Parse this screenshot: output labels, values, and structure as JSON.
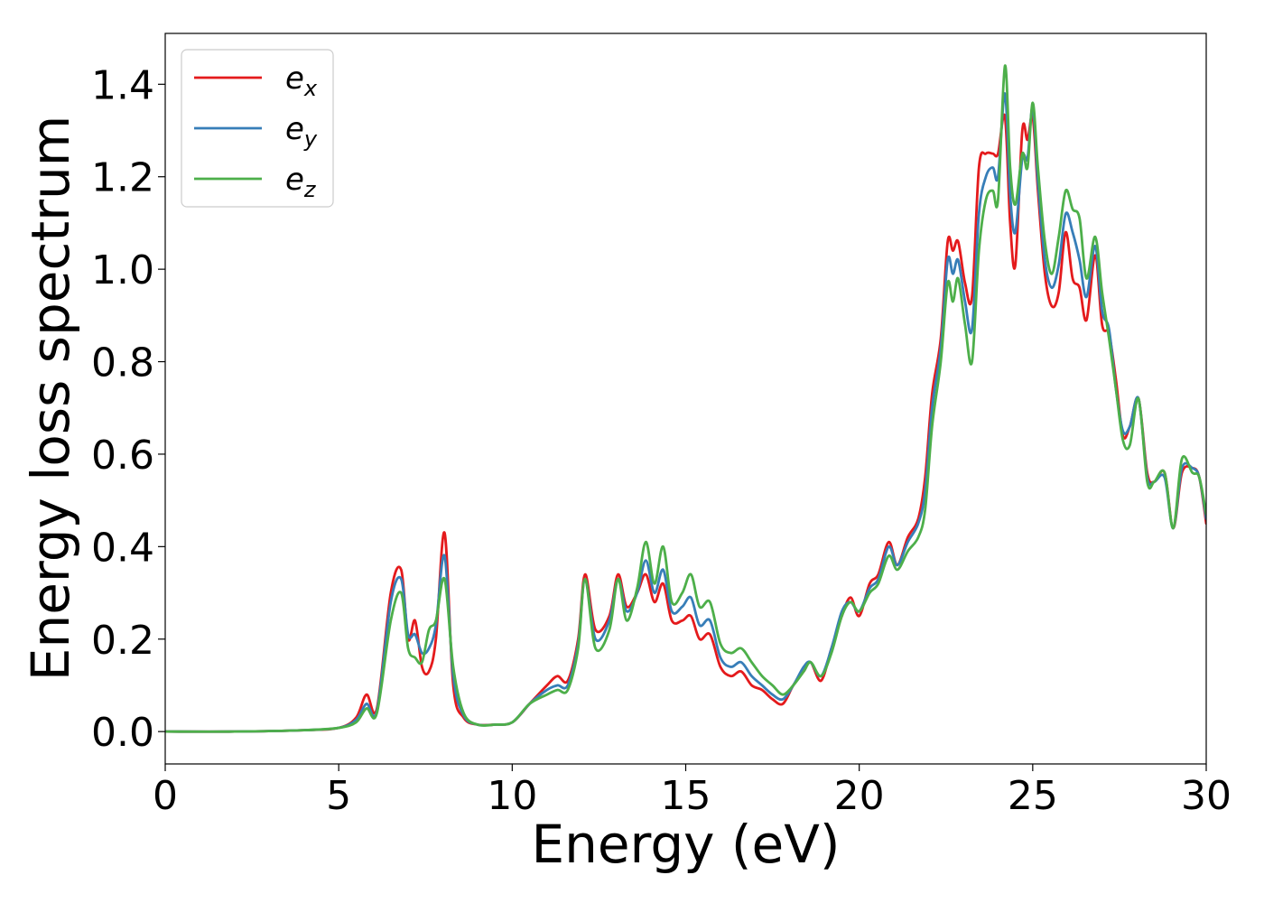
{
  "chart_data": {
    "type": "line",
    "xlabel": "Energy (eV)",
    "ylabel": "Energy loss spectrum",
    "xlim": [
      0,
      30
    ],
    "ylim": [
      -0.07,
      1.51
    ],
    "xticks": [
      0,
      5,
      10,
      15,
      20,
      25,
      30
    ],
    "xtick_labels": [
      "0",
      "5",
      "10",
      "15",
      "20",
      "25",
      "30"
    ],
    "yticks": [
      0.0,
      0.2,
      0.4,
      0.6,
      0.8,
      1.0,
      1.2,
      1.4
    ],
    "ytick_labels": [
      "0.0",
      "0.2",
      "0.4",
      "0.6",
      "0.8",
      "1.0",
      "1.2",
      "1.4"
    ],
    "grid": false,
    "legend_position": "top-left",
    "x": [
      0,
      2,
      4,
      5,
      5.5,
      5.8,
      6.1,
      6.5,
      6.8,
      7.0,
      7.2,
      7.4,
      7.6,
      7.8,
      8.05,
      8.3,
      8.6,
      9.0,
      9.5,
      10.0,
      10.5,
      11.0,
      11.3,
      11.6,
      11.9,
      12.1,
      12.4,
      12.8,
      13.05,
      13.3,
      13.6,
      13.85,
      14.1,
      14.35,
      14.6,
      14.9,
      15.15,
      15.4,
      15.7,
      16.0,
      16.3,
      16.6,
      16.9,
      17.2,
      17.5,
      17.8,
      18.1,
      18.4,
      18.6,
      18.9,
      19.2,
      19.5,
      19.75,
      20.0,
      20.3,
      20.55,
      20.85,
      21.1,
      21.4,
      21.7,
      21.9,
      22.1,
      22.35,
      22.55,
      22.7,
      22.85,
      23.05,
      23.25,
      23.45,
      23.65,
      23.85,
      24.0,
      24.2,
      24.35,
      24.5,
      24.7,
      24.85,
      25.0,
      25.15,
      25.35,
      25.55,
      25.75,
      25.95,
      26.15,
      26.35,
      26.55,
      26.8,
      27.0,
      27.2,
      27.4,
      27.6,
      27.8,
      28.05,
      28.3,
      28.5,
      28.8,
      29.05,
      29.3,
      29.6,
      29.8,
      30.0
    ],
    "series": [
      {
        "name": "ex",
        "color": "#e41a1c",
        "values": [
          0.0,
          0.0,
          0.003,
          0.008,
          0.03,
          0.08,
          0.05,
          0.3,
          0.35,
          0.2,
          0.24,
          0.14,
          0.13,
          0.2,
          0.43,
          0.1,
          0.03,
          0.015,
          0.015,
          0.02,
          0.06,
          0.1,
          0.12,
          0.11,
          0.2,
          0.34,
          0.22,
          0.25,
          0.34,
          0.27,
          0.3,
          0.34,
          0.28,
          0.32,
          0.24,
          0.24,
          0.25,
          0.2,
          0.21,
          0.14,
          0.12,
          0.13,
          0.1,
          0.09,
          0.07,
          0.06,
          0.1,
          0.13,
          0.15,
          0.11,
          0.18,
          0.25,
          0.29,
          0.25,
          0.32,
          0.34,
          0.41,
          0.36,
          0.42,
          0.46,
          0.55,
          0.73,
          0.85,
          1.06,
          1.04,
          1.06,
          0.97,
          0.94,
          1.22,
          1.25,
          1.25,
          1.25,
          1.33,
          1.1,
          1.01,
          1.3,
          1.28,
          1.33,
          1.17,
          0.99,
          0.92,
          0.95,
          1.08,
          0.98,
          0.96,
          0.89,
          1.03,
          0.88,
          0.86,
          0.76,
          0.64,
          0.66,
          0.72,
          0.56,
          0.54,
          0.56,
          0.44,
          0.56,
          0.57,
          0.55,
          0.45
        ]
      },
      {
        "name": "ey",
        "color": "#377eb8",
        "values": [
          0.0,
          0.0,
          0.003,
          0.008,
          0.025,
          0.06,
          0.045,
          0.28,
          0.33,
          0.21,
          0.21,
          0.17,
          0.18,
          0.23,
          0.38,
          0.12,
          0.035,
          0.015,
          0.015,
          0.02,
          0.06,
          0.09,
          0.1,
          0.1,
          0.19,
          0.33,
          0.2,
          0.24,
          0.33,
          0.26,
          0.3,
          0.37,
          0.3,
          0.35,
          0.26,
          0.27,
          0.29,
          0.23,
          0.24,
          0.16,
          0.14,
          0.15,
          0.12,
          0.1,
          0.08,
          0.07,
          0.1,
          0.14,
          0.15,
          0.12,
          0.18,
          0.26,
          0.28,
          0.26,
          0.31,
          0.33,
          0.4,
          0.36,
          0.41,
          0.45,
          0.52,
          0.7,
          0.83,
          1.02,
          0.99,
          1.02,
          0.93,
          0.87,
          1.12,
          1.2,
          1.22,
          1.2,
          1.38,
          1.16,
          1.08,
          1.24,
          1.24,
          1.35,
          1.19,
          1.02,
          0.96,
          1.01,
          1.12,
          1.08,
          1.02,
          0.94,
          1.05,
          0.91,
          0.87,
          0.74,
          0.65,
          0.66,
          0.72,
          0.55,
          0.54,
          0.55,
          0.44,
          0.57,
          0.57,
          0.55,
          0.46
        ]
      },
      {
        "name": "ez",
        "color": "#4daf4a",
        "values": [
          0.0,
          0.0,
          0.003,
          0.008,
          0.02,
          0.05,
          0.04,
          0.24,
          0.3,
          0.18,
          0.16,
          0.15,
          0.22,
          0.24,
          0.33,
          0.14,
          0.04,
          0.015,
          0.015,
          0.02,
          0.06,
          0.08,
          0.09,
          0.09,
          0.18,
          0.33,
          0.18,
          0.22,
          0.33,
          0.24,
          0.31,
          0.41,
          0.32,
          0.4,
          0.28,
          0.3,
          0.34,
          0.27,
          0.28,
          0.19,
          0.17,
          0.18,
          0.15,
          0.12,
          0.1,
          0.08,
          0.1,
          0.13,
          0.15,
          0.12,
          0.17,
          0.25,
          0.28,
          0.26,
          0.3,
          0.32,
          0.38,
          0.35,
          0.39,
          0.42,
          0.48,
          0.66,
          0.8,
          0.97,
          0.93,
          0.98,
          0.88,
          0.8,
          1.04,
          1.15,
          1.17,
          1.15,
          1.44,
          1.22,
          1.14,
          1.25,
          1.22,
          1.36,
          1.22,
          1.06,
          0.99,
          1.07,
          1.17,
          1.13,
          1.11,
          0.98,
          1.07,
          0.95,
          0.85,
          0.74,
          0.63,
          0.62,
          0.72,
          0.54,
          0.54,
          0.56,
          0.44,
          0.59,
          0.56,
          0.55,
          0.47
        ]
      }
    ]
  }
}
